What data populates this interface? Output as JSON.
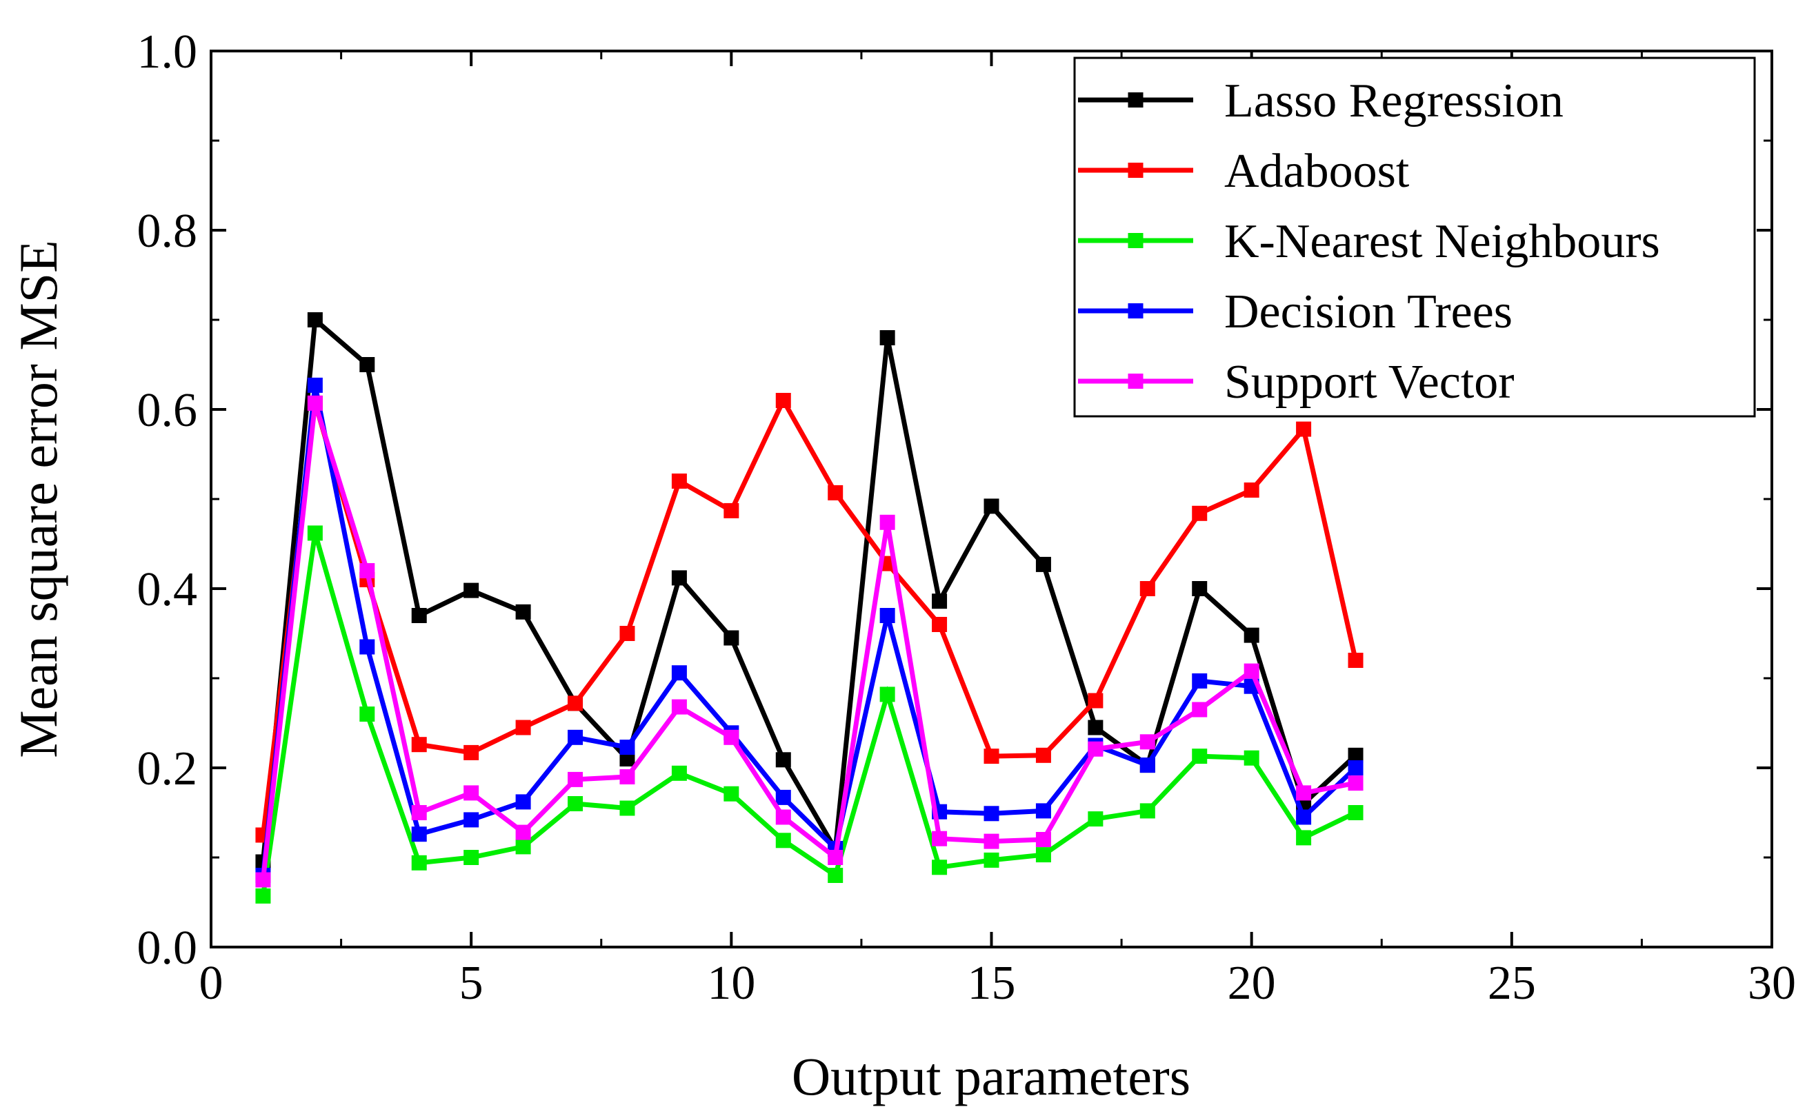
{
  "chart_data": {
    "type": "line",
    "title": "",
    "xlabel": "Output parameters",
    "ylabel": "Mean square error MSE",
    "xlim": [
      0,
      30
    ],
    "ylim": [
      0.0,
      1.0
    ],
    "xticks": [
      0,
      5,
      10,
      15,
      20,
      25,
      30
    ],
    "xtick_labels": [
      "0",
      "5",
      "10",
      "15",
      "20",
      "25",
      "30"
    ],
    "yticks": [
      0.0,
      0.2,
      0.4,
      0.6,
      0.8,
      1.0
    ],
    "ytick_labels": [
      "0.0",
      "0.2",
      "0.4",
      "0.6",
      "0.8",
      "1.0"
    ],
    "grid": false,
    "legend_position": "top-right",
    "x": [
      1,
      2,
      3,
      4,
      5,
      6,
      7,
      8,
      9,
      10,
      11,
      12,
      13,
      14,
      15,
      16,
      17,
      18,
      19,
      20,
      21,
      22
    ],
    "series": [
      {
        "name": "Lasso Regression",
        "color": "#000000",
        "values": [
          0.095,
          0.7,
          0.65,
          0.37,
          0.398,
          0.374,
          0.272,
          0.21,
          0.412,
          0.345,
          0.209,
          0.109,
          0.68,
          0.386,
          0.492,
          0.427,
          0.245,
          0.203,
          0.4,
          0.348,
          0.16,
          0.214
        ]
      },
      {
        "name": "Adaboost",
        "color": "#ff0000",
        "values": [
          0.125,
          0.607,
          0.41,
          0.226,
          0.217,
          0.245,
          0.272,
          0.35,
          0.52,
          0.487,
          0.61,
          0.507,
          0.428,
          0.36,
          0.213,
          0.214,
          0.275,
          0.4,
          0.484,
          0.51,
          0.578,
          0.32
        ]
      },
      {
        "name": "K-Nearest Neighbours",
        "color": "#00ee00",
        "values": [
          0.057,
          0.462,
          0.26,
          0.094,
          0.1,
          0.112,
          0.16,
          0.155,
          0.194,
          0.171,
          0.119,
          0.08,
          0.282,
          0.089,
          0.097,
          0.103,
          0.143,
          0.152,
          0.213,
          0.211,
          0.122,
          0.15
        ]
      },
      {
        "name": "Decision Trees",
        "color": "#0000ff",
        "values": [
          0.08,
          0.627,
          0.335,
          0.126,
          0.142,
          0.162,
          0.234,
          0.223,
          0.306,
          0.239,
          0.167,
          0.11,
          0.37,
          0.151,
          0.149,
          0.152,
          0.225,
          0.203,
          0.297,
          0.291,
          0.145,
          0.2
        ]
      },
      {
        "name": "Support Vector",
        "color": "#ff00ff",
        "values": [
          0.075,
          0.607,
          0.42,
          0.15,
          0.172,
          0.128,
          0.187,
          0.19,
          0.268,
          0.234,
          0.145,
          0.1,
          0.474,
          0.121,
          0.118,
          0.12,
          0.221,
          0.229,
          0.265,
          0.308,
          0.172,
          0.183
        ]
      }
    ]
  }
}
